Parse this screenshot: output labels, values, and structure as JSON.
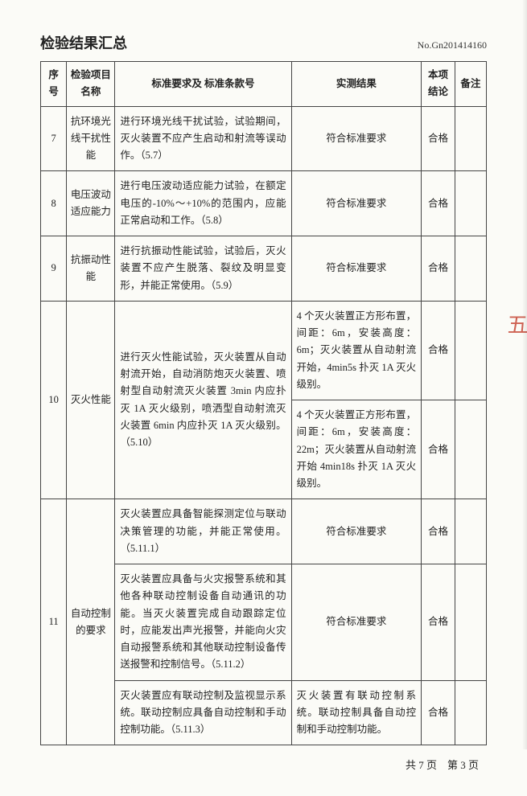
{
  "title": "检验结果汇总",
  "doc_no": "No.Gn201414160",
  "columns": {
    "num": "序号",
    "name": "检验项目名称",
    "req": "标准要求及\n标准条款号",
    "result": "实测结果",
    "concl": "本项结论",
    "note": "备注"
  },
  "footer": "共 7 页　第 3 页",
  "stamp": "五",
  "rows": [
    {
      "num": "7",
      "name": "抗环境光线干扰性能",
      "req": "进行环境光线干扰试验，试验期间，灭火装置不应产生启动和射流等误动作。（5.7）",
      "result": "符合标准要求",
      "result_centered": true,
      "concl": "合格",
      "note": ""
    },
    {
      "num": "8",
      "name": "电压波动适应能力",
      "req": "进行电压波动适应能力试验，在额定电压的-10%～+10%的范围内，应能正常启动和工作。（5.8）",
      "result": "符合标准要求",
      "result_centered": true,
      "concl": "合格",
      "note": ""
    },
    {
      "num": "9",
      "name": "抗振动性能",
      "req": "进行抗振动性能试验，试验后，灭火装置不应产生脱落、裂纹及明显变形，并能正常使用。（5.9）",
      "result": "符合标准要求",
      "result_centered": true,
      "concl": "合格",
      "note": ""
    },
    {
      "num": "10",
      "name": "灭火性能",
      "req": "进行灭火性能试验，灭火装置从自动射流开始，自动消防炮灭火装置、喷射型自动射流灭火装置 3min 内应扑灭 1A 灭火级别，喷洒型自动射流灭火装置 6min 内应扑灭 1A 灭火级别。（5.10）",
      "subresults": [
        {
          "result": "4 个灭火装置正方形布置，间距：6m，安装高度：6m；灭火装置从自动射流开始，4min5s 扑灭 1A 灭火级别。",
          "concl": "合格",
          "note": ""
        },
        {
          "result": "4 个灭火装置正方形布置，间距：6m，安装高度：22m；灭火装置从自动射流开始 4min18s 扑灭 1A 灭火级别。",
          "concl": "合格",
          "note": ""
        }
      ]
    },
    {
      "num": "11",
      "name": "自动控制的要求",
      "subreqs": [
        {
          "req": "灭火装置应具备智能探测定位与联动决策管理的功能，并能正常使用。（5.11.1）",
          "result": "符合标准要求",
          "result_centered": true,
          "concl": "合格",
          "note": ""
        },
        {
          "req": "灭火装置应具备与火灾报警系统和其他各种联动控制设备自动通讯的功能。当灭火装置完成自动跟踪定位时，应能发出声光报警，并能向火灾自动报警系统和其他联动控制设备传送报警和控制信号。（5.11.2）",
          "result": "符合标准要求",
          "result_centered": true,
          "concl": "合格",
          "note": ""
        },
        {
          "req": "灭火装置应有联动控制及监视显示系统。联动控制应具备自动控制和手动控制功能。（5.11.3）",
          "result": "灭火装置有联动控制系统。联动控制具备自动控制和手动控制功能。",
          "result_centered": false,
          "concl": "合格",
          "note": ""
        }
      ]
    }
  ]
}
